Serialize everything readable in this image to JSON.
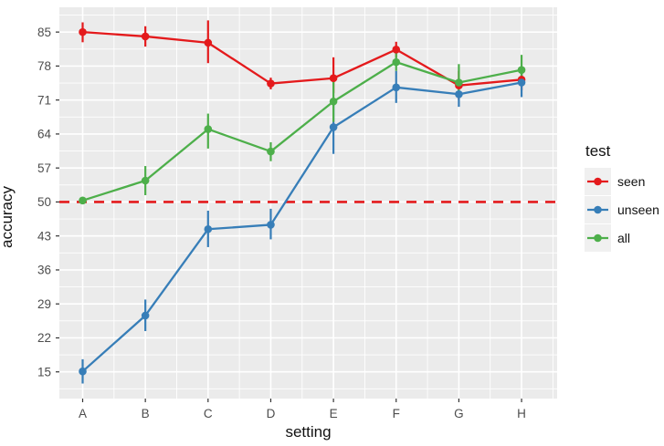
{
  "figure": {
    "background": "#FFFFFF",
    "panel_background": "#EBEBEB",
    "gridline_color": "#FFFFFF",
    "tick_color": "#333333",
    "tick_label_color": "#4D4D4D"
  },
  "chart_data": {
    "type": "line",
    "title": "",
    "xlabel": "setting",
    "ylabel": "accuracy",
    "categories": [
      "A",
      "B",
      "C",
      "D",
      "E",
      "F",
      "G",
      "H"
    ],
    "yticks": [
      15,
      22,
      29,
      36,
      43,
      50,
      57,
      64,
      71,
      78,
      85
    ],
    "ylim": [
      9.5,
      90.1
    ],
    "grid": true,
    "reference_line": {
      "y": 50,
      "color": "#E41A1C",
      "linetype": "dashed"
    },
    "legend": {
      "title": "test",
      "position": "right",
      "entries": [
        {
          "label": "seen",
          "color": "#E41A1C"
        },
        {
          "label": "unseen",
          "color": "#377EB8"
        },
        {
          "label": "all",
          "color": "#4DAF4A"
        }
      ]
    },
    "series": [
      {
        "name": "seen",
        "color": "#E41A1C",
        "values": [
          85.0,
          84.1,
          82.8,
          74.4,
          75.5,
          81.4,
          74.0,
          75.2
        ],
        "ymin": [
          82.9,
          82.0,
          78.6,
          73.2,
          72.4,
          79.7,
          71.0,
          73.0
        ],
        "ymax": [
          87.0,
          86.2,
          87.4,
          75.6,
          79.8,
          83.0,
          77.0,
          77.5
        ]
      },
      {
        "name": "unseen",
        "color": "#377EB8",
        "values": [
          15.1,
          26.6,
          44.4,
          45.3,
          65.4,
          73.6,
          72.2,
          74.6
        ],
        "ymin": [
          12.6,
          23.4,
          40.7,
          42.3,
          59.9,
          70.4,
          69.6,
          71.6
        ],
        "ymax": [
          17.6,
          29.9,
          48.2,
          48.6,
          70.9,
          77.0,
          74.8,
          77.2
        ]
      },
      {
        "name": "all",
        "color": "#4DAF4A",
        "values": [
          50.3,
          54.4,
          65.0,
          60.4,
          70.7,
          78.8,
          74.6,
          77.2
        ],
        "ymin": [
          49.7,
          51.4,
          61.0,
          58.4,
          66.5,
          77.0,
          72.0,
          74.2
        ],
        "ymax": [
          50.9,
          57.4,
          68.2,
          62.3,
          75.0,
          80.8,
          78.4,
          80.3
        ]
      }
    ]
  }
}
